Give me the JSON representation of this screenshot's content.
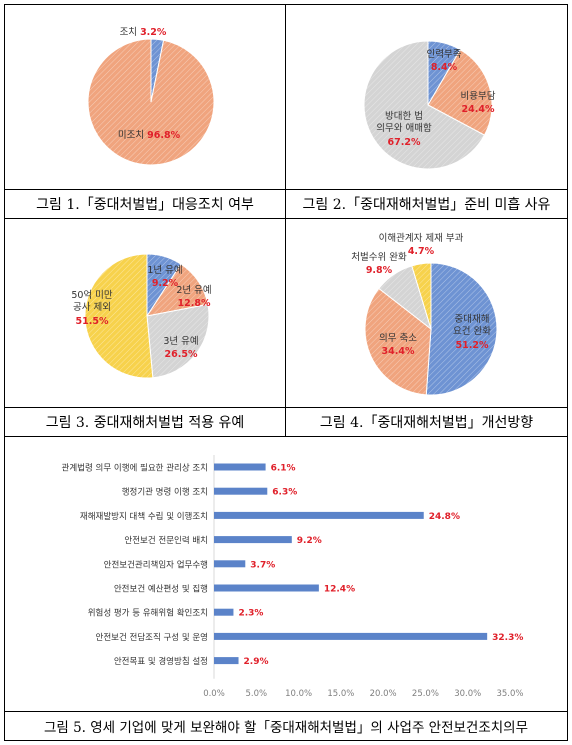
{
  "colors": {
    "blue": "#6e93d3",
    "orange": "#f0a47e",
    "gray": "#d4d4d4",
    "yellow": "#f7d24c",
    "value_red": "#e0202a",
    "label": "#333333"
  },
  "captions": {
    "fig1": "그림 1.「중대처벌법」대응조치 여부",
    "fig2": "그림 2.「중대재해처벌법」준비 미흡 사유",
    "fig3": "그림 3. 중대재해처벌법 적용 유예",
    "fig4": "그림 4.「중대재해처벌법」개선방향",
    "fig5": "그림 5. 영세 기업에 맞게 보완해야 할「중대재해처벌법」의 사업주 안전보건조치의무"
  },
  "chart_data": [
    {
      "type": "pie",
      "title": "",
      "slices": [
        {
          "label": "조치",
          "value": 3.2,
          "value_text": "3.2%",
          "color": "#6e93d3"
        },
        {
          "label": "미조치",
          "value": 96.8,
          "value_text": "96.8%",
          "color": "#f0a47e"
        }
      ]
    },
    {
      "type": "pie",
      "title": "",
      "slices": [
        {
          "label": "인력부족",
          "value": 8.4,
          "value_text": "8.4%",
          "color": "#6e93d3"
        },
        {
          "label": "비용부담",
          "value": 24.4,
          "value_text": "24.4%",
          "color": "#f0a47e"
        },
        {
          "label": "방대한 법 의무와 애매함",
          "value": 67.2,
          "value_text": "67.2%",
          "color": "#d4d4d4"
        }
      ]
    },
    {
      "type": "pie",
      "title": "",
      "slices": [
        {
          "label": "1년 유예",
          "value": 9.2,
          "value_text": "9.2%",
          "color": "#6e93d3"
        },
        {
          "label": "2년 유예",
          "value": 12.8,
          "value_text": "12.8%",
          "color": "#f0a47e"
        },
        {
          "label": "3년 유예",
          "value": 26.5,
          "value_text": "26.5%",
          "color": "#d4d4d4"
        },
        {
          "label": "50억 미만 공사 제외",
          "value": 51.5,
          "value_text": "51.5%",
          "color": "#f7d24c"
        }
      ]
    },
    {
      "type": "pie",
      "title": "",
      "slices": [
        {
          "label": "중대재해 요건 완화",
          "value": 51.2,
          "value_text": "51.2%",
          "color": "#6e93d3"
        },
        {
          "label": "의무 축소",
          "value": 34.4,
          "value_text": "34.4%",
          "color": "#f0a47e"
        },
        {
          "label": "처벌수위 완화",
          "value": 9.8,
          "value_text": "9.8%",
          "color": "#d4d4d4"
        },
        {
          "label": "이해관계자 제재 부과",
          "value": 4.7,
          "value_text": "4.7%",
          "color": "#f7d24c"
        }
      ]
    },
    {
      "type": "bar",
      "orientation": "horizontal",
      "title": "",
      "xlabel": "",
      "ylabel": "",
      "categories": [
        "관계법령 의무 이행에 필요한 관리상 조치",
        "행정기관 명령 이행 조치",
        "재해재발방지 대책 수립 및 이행조치",
        "안전보건 전문인력 배치",
        "안전보건관리책임자 업무수행",
        "안전보건 예산편성 및 집행",
        "위험성 평가 등 유해위험 확인조치",
        "안전보건 전담조직 구성 및 운영",
        "안전목표 및 경영방침 설정"
      ],
      "values": [
        6.1,
        6.3,
        24.8,
        9.2,
        3.7,
        12.4,
        2.3,
        32.3,
        2.9
      ],
      "value_labels": [
        "6.1%",
        "6.3%",
        "24.8%",
        "9.2%",
        "3.7%",
        "12.4%",
        "2.3%",
        "32.3%",
        "2.9%"
      ],
      "xlim": [
        0,
        35
      ],
      "xticks": [
        "0.0%",
        "5.0%",
        "10.0%",
        "15.0%",
        "20.0%",
        "25.0%",
        "30.0%",
        "35.0%"
      ],
      "grid": false,
      "bar_color": "#5b83c9"
    }
  ]
}
